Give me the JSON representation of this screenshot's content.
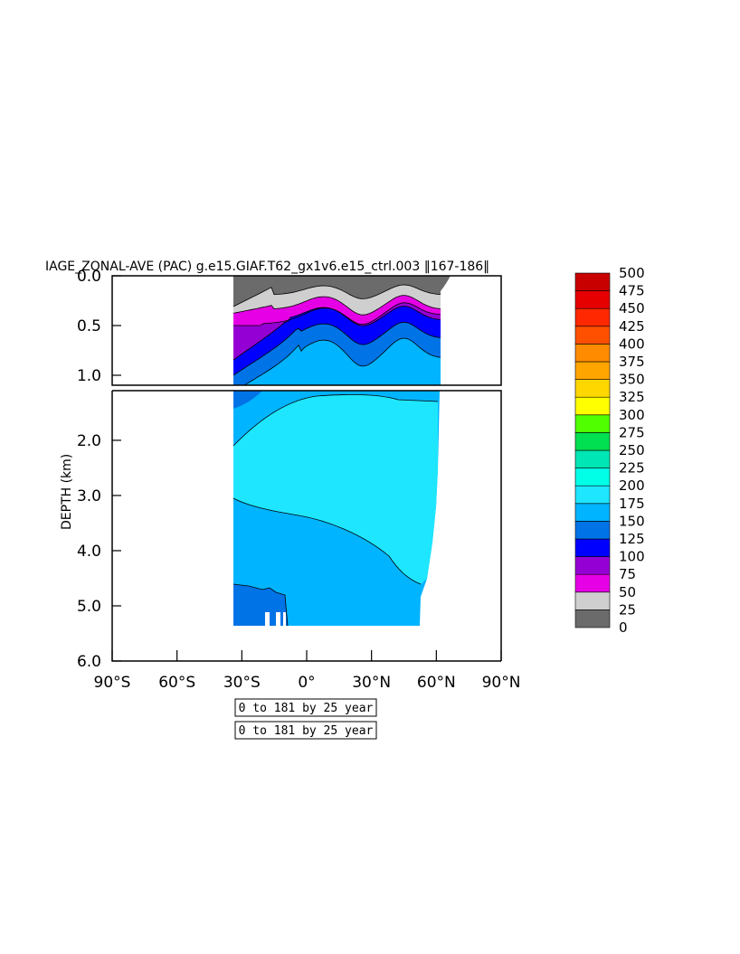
{
  "chart_data": {
    "type": "contour",
    "title": "IAGE_ZONAL-AVE (PAC) g.e15.GIAF.T62_gx1v6.e15_ctrl.003 ‖167-186‖",
    "ylabel": "DEPTH (km)",
    "xlabel": "",
    "x_ticks": [
      "90°S",
      "60°S",
      "30°S",
      "0°",
      "30°N",
      "60°N",
      "90°N"
    ],
    "x_tick_values": [
      -90,
      -60,
      -30,
      0,
      30,
      60,
      90
    ],
    "xlim": [
      -90,
      90
    ],
    "upper_panel": {
      "ylim": [
        0.0,
        1.1
      ],
      "y_ticks": [
        "0.0",
        "0.5",
        "1.0"
      ],
      "y_tick_values": [
        0.0,
        0.5,
        1.0
      ]
    },
    "lower_panel": {
      "ylim": [
        1.1,
        6.0
      ],
      "y_ticks": [
        "2.0",
        "3.0",
        "4.0",
        "5.0",
        "6.0"
      ],
      "y_tick_values": [
        2.0,
        3.0,
        4.0,
        5.0,
        6.0
      ]
    },
    "contour_levels": [
      0,
      25,
      50,
      75,
      100,
      125,
      150,
      175,
      200,
      225,
      250,
      275,
      300,
      325,
      350,
      375,
      400,
      425,
      450,
      475,
      500
    ],
    "colorbar_colors": [
      "#6b6b6b",
      "#cfcfcf",
      "#e600e6",
      "#9400d3",
      "#0000ff",
      "#0073e6",
      "#00b4ff",
      "#1ee6ff",
      "#00ffe6",
      "#00e6b4",
      "#00e050",
      "#50ff00",
      "#ffff00",
      "#ffd700",
      "#ffa500",
      "#ff8c00",
      "#ff5000",
      "#ff2800",
      "#e60000",
      "#c80000"
    ],
    "contour_interval_labels": [
      "0 to 181 by 25 year",
      "0 to 181 by 25 year"
    ]
  }
}
